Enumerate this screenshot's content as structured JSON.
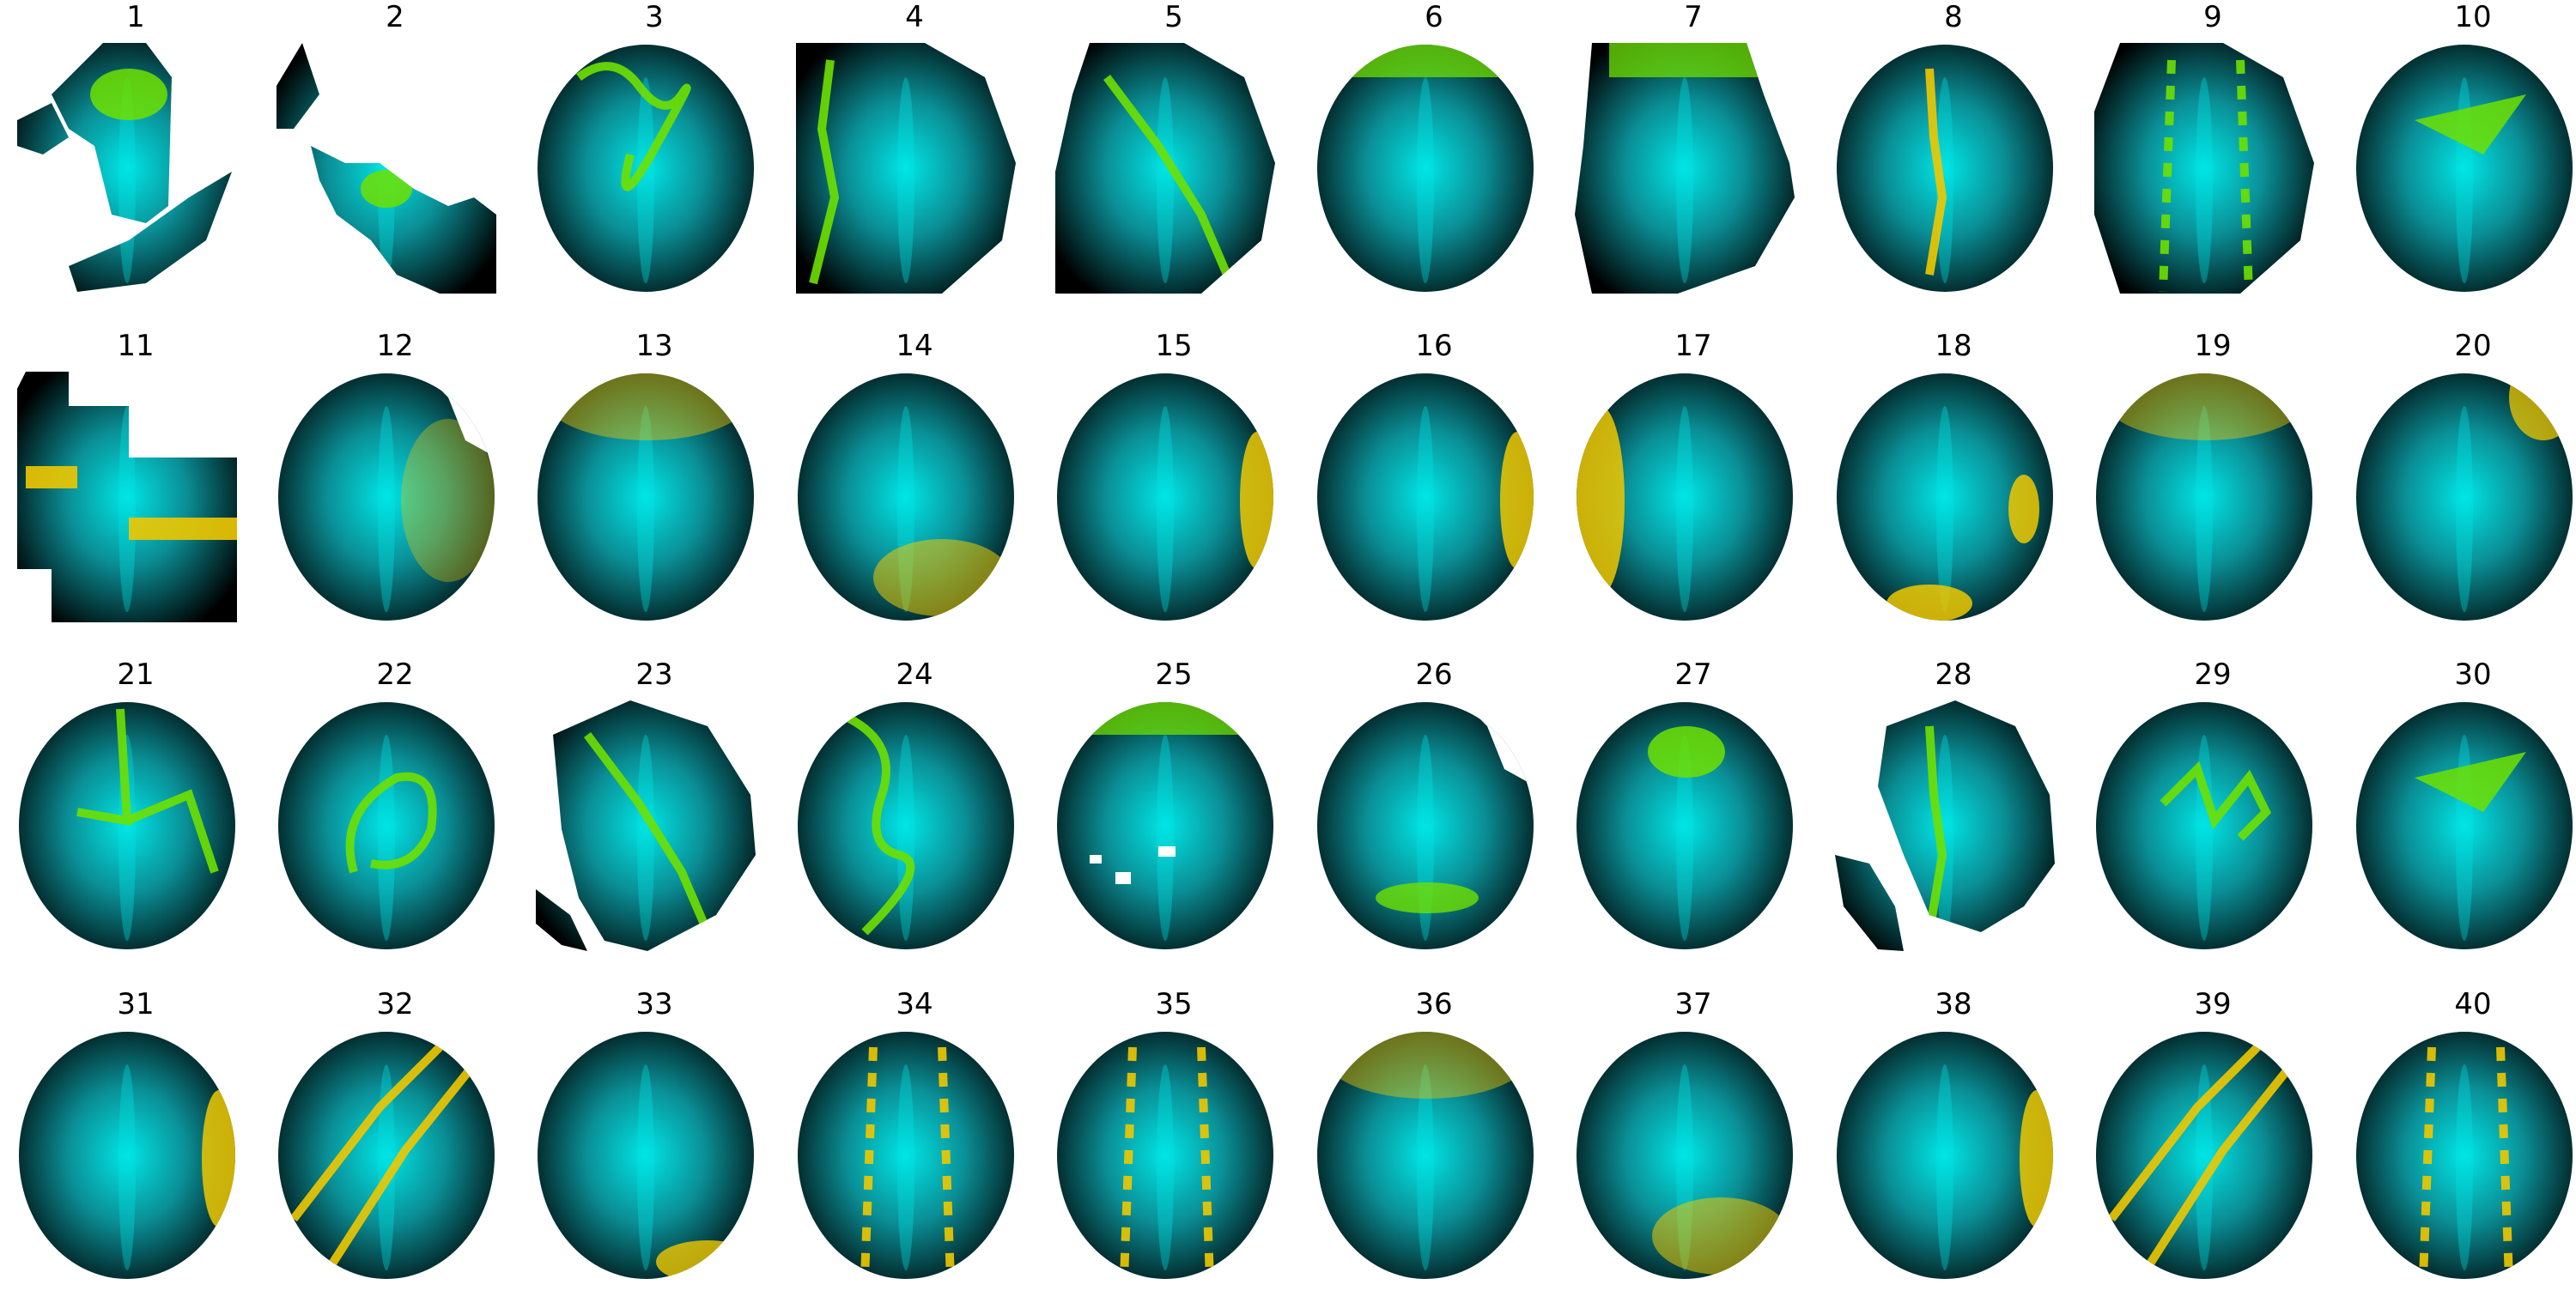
{
  "panels": [
    {
      "label": "1",
      "shape": "fragment-a",
      "hot": "green",
      "pattern": "blob-top"
    },
    {
      "label": "2",
      "shape": "fragment-b",
      "hot": "green",
      "pattern": "blob-center"
    },
    {
      "label": "3",
      "shape": "disc",
      "hot": "green",
      "pattern": "squiggle-top"
    },
    {
      "label": "4",
      "shape": "half-right",
      "hot": "green",
      "pattern": "line-left"
    },
    {
      "label": "5",
      "shape": "half-right-b",
      "hot": "green",
      "pattern": "line-diag"
    },
    {
      "label": "6",
      "shape": "disc",
      "hot": "green",
      "pattern": "band-top"
    },
    {
      "label": "7",
      "shape": "fragment-c",
      "hot": "green",
      "pattern": "band-top"
    },
    {
      "label": "8",
      "shape": "disc",
      "hot": "yellow",
      "pattern": "line-vertical"
    },
    {
      "label": "9",
      "shape": "disc-cut",
      "hot": "green",
      "pattern": "dotted-vertical"
    },
    {
      "label": "10",
      "shape": "disc",
      "hot": "green",
      "pattern": "wedge"
    },
    {
      "label": "11",
      "shape": "blocks",
      "hot": "yellow",
      "pattern": "bars-horizontal"
    },
    {
      "label": "12",
      "shape": "disc-notch",
      "hot": "yellow",
      "pattern": "cloud-right"
    },
    {
      "label": "13",
      "shape": "disc",
      "hot": "yellow",
      "pattern": "cloud-top"
    },
    {
      "label": "14",
      "shape": "disc",
      "hot": "yellow",
      "pattern": "cloud-bottom"
    },
    {
      "label": "15",
      "shape": "disc",
      "hot": "yellow",
      "pattern": "edge-right"
    },
    {
      "label": "16",
      "shape": "disc",
      "hot": "yellow",
      "pattern": "edge-right"
    },
    {
      "label": "17",
      "shape": "disc",
      "hot": "yellow",
      "pattern": "edge-left"
    },
    {
      "label": "18",
      "shape": "disc",
      "hot": "yellow",
      "pattern": "edge-bottom"
    },
    {
      "label": "19",
      "shape": "disc",
      "hot": "yellow",
      "pattern": "cloud-top"
    },
    {
      "label": "20",
      "shape": "disc",
      "hot": "yellow",
      "pattern": "corner-top-right"
    },
    {
      "label": "21",
      "shape": "disc",
      "hot": "green",
      "pattern": "branch"
    },
    {
      "label": "22",
      "shape": "disc",
      "hot": "green",
      "pattern": "loop"
    },
    {
      "label": "23",
      "shape": "fragment-d",
      "hot": "green",
      "pattern": "line-diag"
    },
    {
      "label": "24",
      "shape": "disc",
      "hot": "green",
      "pattern": "squiggle-vertical"
    },
    {
      "label": "25",
      "shape": "disc-holes",
      "hot": "green",
      "pattern": "band-top"
    },
    {
      "label": "26",
      "shape": "disc-notch",
      "hot": "green",
      "pattern": "band-bottom"
    },
    {
      "label": "27",
      "shape": "disc",
      "hot": "green",
      "pattern": "blob-top"
    },
    {
      "label": "28",
      "shape": "fragment-e",
      "hot": "green",
      "pattern": "line-vertical"
    },
    {
      "label": "29",
      "shape": "disc",
      "hot": "green",
      "pattern": "zigzag"
    },
    {
      "label": "30",
      "shape": "disc",
      "hot": "green",
      "pattern": "wedge"
    },
    {
      "label": "31",
      "shape": "disc",
      "hot": "yellow",
      "pattern": "edge-right"
    },
    {
      "label": "32",
      "shape": "disc",
      "hot": "yellow",
      "pattern": "lines-diag"
    },
    {
      "label": "33",
      "shape": "disc",
      "hot": "yellow",
      "pattern": "corners"
    },
    {
      "label": "34",
      "shape": "disc",
      "hot": "yellow",
      "pattern": "dotted-vertical"
    },
    {
      "label": "35",
      "shape": "disc",
      "hot": "yellow",
      "pattern": "dotted-vertical"
    },
    {
      "label": "36",
      "shape": "disc",
      "hot": "yellow",
      "pattern": "cloud-top"
    },
    {
      "label": "37",
      "shape": "disc",
      "hot": "yellow",
      "pattern": "cloud-bottom"
    },
    {
      "label": "38",
      "shape": "disc",
      "hot": "yellow",
      "pattern": "edge-right"
    },
    {
      "label": "39",
      "shape": "disc",
      "hot": "yellow",
      "pattern": "lines-diag"
    },
    {
      "label": "40",
      "shape": "disc",
      "hot": "yellow",
      "pattern": "dotted-vertical"
    }
  ],
  "colors": {
    "cyan": "#00e5e5",
    "teal_mid": "#0a8f96",
    "dark": "#000000",
    "green": "#6fe000",
    "yellow": "#f0c800",
    "background": "#ffffff"
  }
}
